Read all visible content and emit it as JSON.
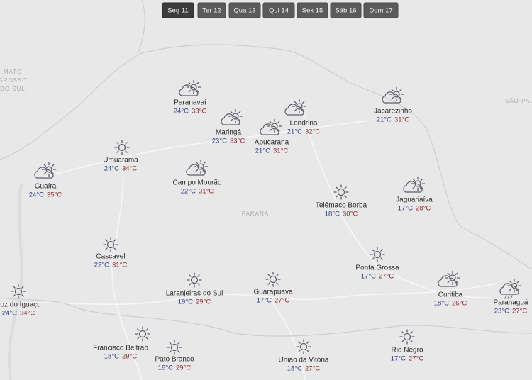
{
  "tabs": [
    {
      "label": "Seg 11",
      "active": true
    },
    {
      "label": "Ter 12",
      "active": false
    },
    {
      "label": "Qua 13",
      "active": false
    },
    {
      "label": "Qui 14",
      "active": false
    },
    {
      "label": "Sex 15",
      "active": false
    },
    {
      "label": "Sáb 16",
      "active": false
    },
    {
      "label": "Dom 17",
      "active": false
    }
  ],
  "map_labels": [
    {
      "lines": [
        "MATO",
        "GROSSO",
        "DO SUL"
      ]
    },
    {
      "lines": [
        "SÃO PAU"
      ]
    },
    {
      "lines": [
        "PARANÁ"
      ]
    }
  ],
  "cities": [
    {
      "name": "Paranavaí",
      "min": "24°C",
      "max": "33°C",
      "weather": "partly-cloudy"
    },
    {
      "name": "Maringá",
      "min": "23°C",
      "max": "33°C",
      "weather": "partly-cloudy"
    },
    {
      "name": "Londrina",
      "min": "21°C",
      "max": "32°C",
      "weather": "partly-cloudy"
    },
    {
      "name": "Apucarana",
      "min": "21°C",
      "max": "31°C",
      "weather": "partly-cloudy"
    },
    {
      "name": "Jacarezinho",
      "min": "21°C",
      "max": "31°C",
      "weather": "partly-cloudy"
    },
    {
      "name": "Umuarama",
      "min": "24°C",
      "max": "34°C",
      "weather": "sun"
    },
    {
      "name": "Guaíra",
      "min": "24°C",
      "max": "35°C",
      "weather": "partly-cloudy"
    },
    {
      "name": "Campo Mourão",
      "min": "22°C",
      "max": "31°C",
      "weather": "partly-cloudy"
    },
    {
      "name": "Telêmaco Borba",
      "min": "18°C",
      "max": "30°C",
      "weather": "sun"
    },
    {
      "name": "Jaguariaíva",
      "min": "17°C",
      "max": "28°C",
      "weather": "partly-cloudy"
    },
    {
      "name": "Cascavel",
      "min": "22°C",
      "max": "31°C",
      "weather": "sun"
    },
    {
      "name": "Ponta Grossa",
      "min": "17°C",
      "max": "27°C",
      "weather": "sun"
    },
    {
      "name": "Laranjeiras do Sul",
      "min": "19°C",
      "max": "29°C",
      "weather": "sun"
    },
    {
      "name": "Guarapuava",
      "min": "17°C",
      "max": "27°C",
      "weather": "sun"
    },
    {
      "name": "Foz do Iguaçu",
      "min": "24°C",
      "max": "34°C",
      "weather": "sun"
    },
    {
      "name": "Curitiba",
      "min": "18°C",
      "max": "26°C",
      "weather": "partly-cloudy"
    },
    {
      "name": "Paranaguá",
      "min": "23°C",
      "max": "27°C",
      "weather": "rain"
    },
    {
      "name": "Francisco Beltrão",
      "min": "18°C",
      "max": "29°C",
      "weather": "sun"
    },
    {
      "name": "Pato Branco",
      "min": "18°C",
      "max": "29°C",
      "weather": "sun"
    },
    {
      "name": "União da Vitória",
      "min": "18°C",
      "max": "27°C",
      "weather": "sun"
    },
    {
      "name": "Rio Negro",
      "min": "17°C",
      "max": "27°C",
      "weather": "sun"
    }
  ]
}
